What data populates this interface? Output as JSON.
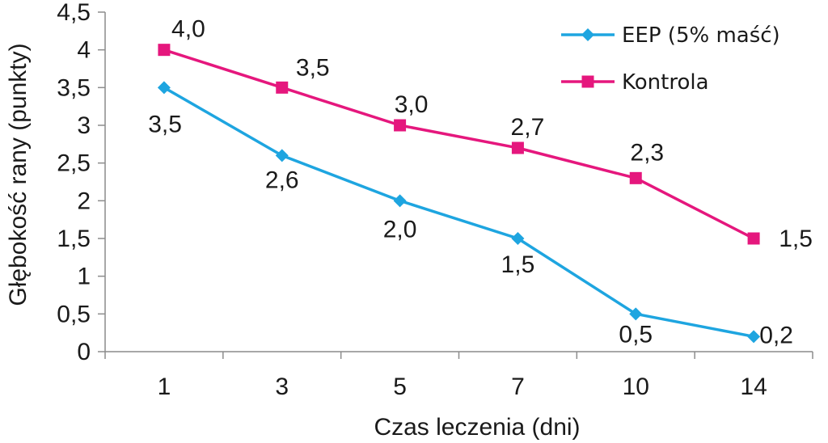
{
  "chart_data": {
    "type": "line",
    "categories": [
      "1",
      "3",
      "5",
      "7",
      "10",
      "14"
    ],
    "series": [
      {
        "name": "EEP (5% maść)",
        "values": [
          3.5,
          2.6,
          2.0,
          1.5,
          0.5,
          0.2
        ],
        "labels": [
          "3,5",
          "2,6",
          "2,0",
          "1,5",
          "0,5",
          "0,2"
        ],
        "color": "#1ea5e0",
        "marker": "diamond"
      },
      {
        "name": "Kontrola",
        "values": [
          4.0,
          3.5,
          3.0,
          2.7,
          2.3,
          1.5
        ],
        "labels": [
          "4,0",
          "3,5",
          "3,0",
          "2,7",
          "2,3",
          "1,5"
        ],
        "color": "#e5177d",
        "marker": "square"
      }
    ],
    "xlabel": "Czas leczenia (dni)",
    "ylabel": "Głębokość rany (punkty)",
    "ylim": [
      0,
      4.5
    ],
    "yticks": [
      "0",
      "0,5",
      "1",
      "1,5",
      "2",
      "2,5",
      "3",
      "3,5",
      "4",
      "4,5"
    ],
    "grid": false,
    "legend": "top-right"
  }
}
